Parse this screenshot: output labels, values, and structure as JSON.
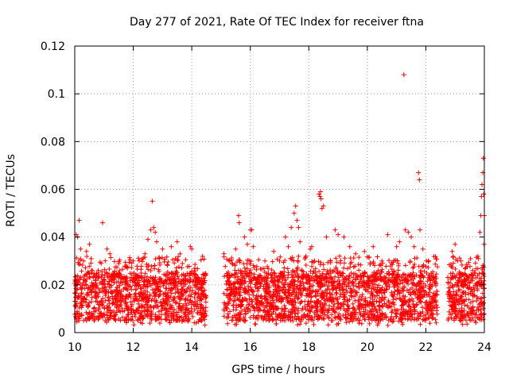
{
  "chart_data": {
    "type": "scatter",
    "title": "Day 277 of 2021, Rate Of TEC Index for receiver ftna",
    "xlabel": "GPS time / hours",
    "ylabel": "ROTI / TECUs",
    "xlim": [
      10,
      24
    ],
    "ylim": [
      0,
      0.12
    ],
    "xticks": [
      10,
      12,
      14,
      16,
      18,
      20,
      22,
      24
    ],
    "xtick_labels": [
      "10",
      "12",
      "14",
      "16",
      "18",
      "20",
      "22",
      "24"
    ],
    "yticks": [
      0,
      0.02,
      0.04,
      0.06,
      0.08,
      0.1,
      0.12
    ],
    "ytick_labels": [
      "0",
      "0.02",
      "0.04",
      "0.06",
      "0.08",
      "0.1",
      "0.12"
    ],
    "grid": true,
    "marker": "+",
    "color": "#ff0000",
    "series": [
      {
        "name": "ROTI",
        "points": [
          [
            10.05,
            0.041
          ],
          [
            10.1,
            0.04
          ],
          [
            10.15,
            0.047
          ],
          [
            10.2,
            0.035
          ],
          [
            10.3,
            0.03
          ],
          [
            10.4,
            0.034
          ],
          [
            10.5,
            0.037
          ],
          [
            10.6,
            0.026
          ],
          [
            10.95,
            0.046
          ],
          [
            11.1,
            0.035
          ],
          [
            11.2,
            0.033
          ],
          [
            11.5,
            0.025
          ],
          [
            11.8,
            0.027
          ],
          [
            12.0,
            0.03
          ],
          [
            12.2,
            0.03
          ],
          [
            12.4,
            0.033
          ],
          [
            12.5,
            0.039
          ],
          [
            12.6,
            0.043
          ],
          [
            12.65,
            0.055
          ],
          [
            12.7,
            0.044
          ],
          [
            12.75,
            0.042
          ],
          [
            12.8,
            0.038
          ],
          [
            13.0,
            0.035
          ],
          [
            13.3,
            0.036
          ],
          [
            13.5,
            0.038
          ],
          [
            13.6,
            0.033
          ],
          [
            13.95,
            0.036
          ],
          [
            14.0,
            0.035
          ],
          [
            15.1,
            0.033
          ],
          [
            15.3,
            0.03
          ],
          [
            15.5,
            0.035
          ],
          [
            15.6,
            0.049
          ],
          [
            15.62,
            0.046
          ],
          [
            15.8,
            0.04
          ],
          [
            15.9,
            0.037
          ],
          [
            16.0,
            0.043
          ],
          [
            16.05,
            0.043
          ],
          [
            16.1,
            0.036
          ],
          [
            16.5,
            0.03
          ],
          [
            16.8,
            0.034
          ],
          [
            17.0,
            0.03
          ],
          [
            17.2,
            0.04
          ],
          [
            17.3,
            0.036
          ],
          [
            17.4,
            0.044
          ],
          [
            17.5,
            0.05
          ],
          [
            17.55,
            0.053
          ],
          [
            17.6,
            0.047
          ],
          [
            17.65,
            0.044
          ],
          [
            17.7,
            0.038
          ],
          [
            17.9,
            0.032
          ],
          [
            18.05,
            0.035
          ],
          [
            18.1,
            0.036
          ],
          [
            18.2,
            0.03
          ],
          [
            18.35,
            0.058
          ],
          [
            18.38,
            0.057
          ],
          [
            18.4,
            0.059
          ],
          [
            18.42,
            0.056
          ],
          [
            18.45,
            0.052
          ],
          [
            18.5,
            0.053
          ],
          [
            18.6,
            0.04
          ],
          [
            18.9,
            0.043
          ],
          [
            19.0,
            0.041
          ],
          [
            19.2,
            0.04
          ],
          [
            19.4,
            0.036
          ],
          [
            19.6,
            0.033
          ],
          [
            19.9,
            0.034
          ],
          [
            20.2,
            0.036
          ],
          [
            20.5,
            0.03
          ],
          [
            20.7,
            0.041
          ],
          [
            21.0,
            0.036
          ],
          [
            21.1,
            0.038
          ],
          [
            21.25,
            0.108
          ],
          [
            21.3,
            0.043
          ],
          [
            21.4,
            0.042
          ],
          [
            21.5,
            0.04
          ],
          [
            21.6,
            0.036
          ],
          [
            21.75,
            0.067
          ],
          [
            21.78,
            0.064
          ],
          [
            21.8,
            0.043
          ],
          [
            21.9,
            0.035
          ],
          [
            22.1,
            0.03
          ],
          [
            22.9,
            0.034
          ],
          [
            23.0,
            0.037
          ],
          [
            23.2,
            0.03
          ],
          [
            23.6,
            0.026
          ],
          [
            23.8,
            0.031
          ],
          [
            23.85,
            0.042
          ],
          [
            23.88,
            0.049
          ],
          [
            23.9,
            0.057
          ],
          [
            23.92,
            0.062
          ],
          [
            23.95,
            0.067
          ],
          [
            23.97,
            0.073
          ],
          [
            23.98,
            0.058
          ],
          [
            24.0,
            0.049
          ],
          [
            23.99,
            0.037
          ]
        ]
      }
    ],
    "dense_band": {
      "description_free": true,
      "segments": [
        [
          10.0,
          14.5
        ],
        [
          15.1,
          22.4
        ],
        [
          22.75,
          24.0
        ]
      ],
      "typical_range": [
        0.005,
        0.025
      ]
    }
  }
}
